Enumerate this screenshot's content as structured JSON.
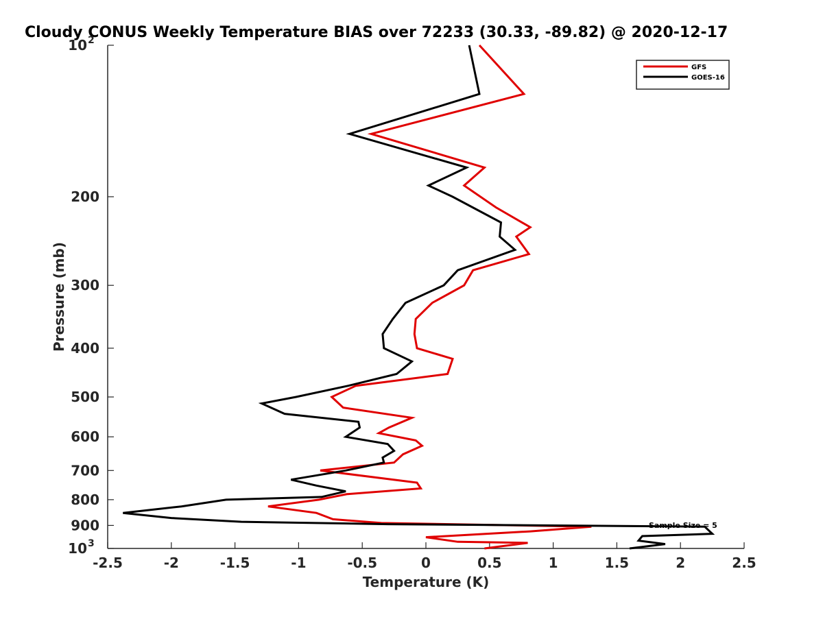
{
  "figure": {
    "title": "Cloudy CONUS Weekly Temperature BIAS over 72233 (30.33, -89.82) @ 2020-12-17",
    "annotation": "Sample Size = 5"
  },
  "chart_data": {
    "type": "line",
    "title": "Cloudy CONUS Weekly Temperature BIAS over 72233 (30.33, -89.82) @ 2020-12-17",
    "xlabel": "Temperature (K)",
    "ylabel": "Pressure (mb)",
    "xlim": [
      -2.5,
      2.5
    ],
    "ylim": [
      100,
      1000
    ],
    "y_scale": "log",
    "y_reversed": true,
    "x_ticks": [
      "-2.5",
      "-2",
      "-1.5",
      "-1",
      "-0.5",
      "0",
      "0.5",
      "1",
      "1.5",
      "2",
      "2.5"
    ],
    "y_ticks": [
      {
        "value": 100,
        "base": "10",
        "exp": "2"
      },
      {
        "value": 200,
        "label": "200"
      },
      {
        "value": 300,
        "label": "300"
      },
      {
        "value": 400,
        "label": "400"
      },
      {
        "value": 500,
        "label": "500"
      },
      {
        "value": 600,
        "label": "600"
      },
      {
        "value": 700,
        "label": "700"
      },
      {
        "value": 800,
        "label": "800"
      },
      {
        "value": 900,
        "label": "900"
      },
      {
        "value": 1000,
        "base": "10",
        "exp": "3"
      }
    ],
    "grid": false,
    "legend_position": "top-right",
    "series": [
      {
        "name": "GFS",
        "color": "#e00000",
        "points": [
          [
            0.42,
            100
          ],
          [
            0.77,
            125
          ],
          [
            -0.43,
            150
          ],
          [
            0.46,
            175
          ],
          [
            0.3,
            190
          ],
          [
            0.55,
            210
          ],
          [
            0.82,
            230
          ],
          [
            0.71,
            240
          ],
          [
            0.81,
            260
          ],
          [
            0.37,
            280
          ],
          [
            0.3,
            300
          ],
          [
            0.05,
            325
          ],
          [
            -0.08,
            350
          ],
          [
            -0.09,
            375
          ],
          [
            -0.07,
            400
          ],
          [
            0.21,
            420
          ],
          [
            0.17,
            450
          ],
          [
            -0.55,
            475
          ],
          [
            -0.74,
            500
          ],
          [
            -0.65,
            525
          ],
          [
            -0.11,
            550
          ],
          [
            -0.29,
            575
          ],
          [
            -0.37,
            590
          ],
          [
            -0.08,
            610
          ],
          [
            -0.03,
            625
          ],
          [
            -0.18,
            650
          ],
          [
            -0.25,
            675
          ],
          [
            -0.83,
            700
          ],
          [
            -0.07,
            740
          ],
          [
            -0.04,
            760
          ],
          [
            -0.62,
            780
          ],
          [
            -0.84,
            800
          ],
          [
            -1.24,
            825
          ],
          [
            -0.86,
            850
          ],
          [
            -0.73,
            875
          ],
          [
            -0.35,
            890
          ],
          [
            1.3,
            905
          ],
          [
            0.82,
            925
          ],
          [
            0.0,
            950
          ],
          [
            0.25,
            970
          ],
          [
            0.8,
            975
          ],
          [
            0.46,
            1000
          ]
        ]
      },
      {
        "name": "GOES-16",
        "color": "#000000",
        "points": [
          [
            0.34,
            100
          ],
          [
            0.42,
            125
          ],
          [
            -0.6,
            150
          ],
          [
            0.32,
            175
          ],
          [
            0.02,
            190
          ],
          [
            0.21,
            200
          ],
          [
            0.59,
            225
          ],
          [
            0.58,
            240
          ],
          [
            0.7,
            255
          ],
          [
            0.25,
            280
          ],
          [
            0.14,
            300
          ],
          [
            -0.16,
            325
          ],
          [
            -0.26,
            350
          ],
          [
            -0.34,
            375
          ],
          [
            -0.33,
            400
          ],
          [
            -0.11,
            425
          ],
          [
            -0.23,
            450
          ],
          [
            -0.61,
            475
          ],
          [
            -1.02,
            500
          ],
          [
            -1.29,
            515
          ],
          [
            -1.11,
            540
          ],
          [
            -0.53,
            560
          ],
          [
            -0.52,
            575
          ],
          [
            -0.63,
            600
          ],
          [
            -0.3,
            620
          ],
          [
            -0.25,
            640
          ],
          [
            -0.34,
            660
          ],
          [
            -0.33,
            675
          ],
          [
            -0.63,
            700
          ],
          [
            -1.06,
            730
          ],
          [
            -0.86,
            750
          ],
          [
            -0.63,
            770
          ],
          [
            -0.82,
            790
          ],
          [
            -1.57,
            800
          ],
          [
            -1.92,
            825
          ],
          [
            -2.38,
            850
          ],
          [
            -2.0,
            870
          ],
          [
            -1.45,
            885
          ],
          [
            -0.3,
            895
          ],
          [
            2.19,
            905
          ],
          [
            2.25,
            935
          ],
          [
            1.7,
            945
          ],
          [
            1.67,
            965
          ],
          [
            1.88,
            980
          ],
          [
            1.6,
            1000
          ]
        ]
      }
    ]
  }
}
